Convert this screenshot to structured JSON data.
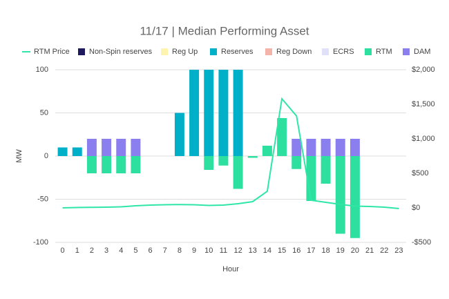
{
  "chart_data": {
    "type": "bar",
    "title": "11/17 | Median Performing Asset",
    "xlabel": "Hour",
    "ylabel": "MW",
    "categories": [
      "0",
      "1",
      "2",
      "3",
      "4",
      "5",
      "6",
      "7",
      "8",
      "9",
      "10",
      "11",
      "12",
      "13",
      "14",
      "15",
      "16",
      "17",
      "18",
      "19",
      "20",
      "21",
      "22",
      "23"
    ],
    "series": [
      {
        "name": "RTM Price",
        "type": "line",
        "axis": "y2",
        "color": "#2ee6a6",
        "values": [
          0,
          5,
          8,
          10,
          15,
          30,
          40,
          45,
          48,
          45,
          35,
          40,
          60,
          90,
          240,
          1580,
          1330,
          110,
          80,
          50,
          25,
          20,
          10,
          -10
        ]
      },
      {
        "name": "Non-Spin reserves",
        "color": "#1f1a5e",
        "values": [
          0,
          0,
          0,
          0,
          0,
          0,
          0,
          0,
          0,
          0,
          0,
          0,
          0,
          0,
          0,
          0,
          0,
          0,
          0,
          0,
          0,
          0,
          0,
          0
        ]
      },
      {
        "name": "Reg Up",
        "color": "#fff3b0",
        "values": [
          0,
          0,
          0,
          0,
          0,
          0,
          0,
          0,
          0,
          0,
          0,
          0,
          0,
          0,
          0,
          0,
          0,
          0,
          0,
          0,
          0,
          0,
          0,
          0
        ]
      },
      {
        "name": "Reserves",
        "color": "#00b0c8",
        "values": [
          10,
          10,
          0,
          0,
          0,
          0,
          0,
          0,
          50,
          100,
          100,
          100,
          100,
          0,
          0,
          0,
          0,
          0,
          0,
          0,
          0,
          0,
          0,
          0
        ]
      },
      {
        "name": "Reg Down",
        "color": "#f4b4aa",
        "values": [
          0,
          0,
          0,
          0,
          0,
          0,
          0,
          0,
          0,
          0,
          0,
          0,
          0,
          0,
          0,
          0,
          0,
          0,
          0,
          0,
          0,
          0,
          0,
          0
        ]
      },
      {
        "name": "ECRS",
        "color": "#e0e0f8",
        "values": [
          0,
          0,
          0,
          0,
          0,
          0,
          0,
          0,
          0,
          0,
          0,
          0,
          0,
          0,
          0,
          0,
          0,
          0,
          0,
          0,
          0,
          0,
          0,
          0
        ]
      },
      {
        "name": "RTM",
        "color": "#2de0a0",
        "values": [
          0,
          0,
          -20,
          -20,
          -20,
          -20,
          0,
          0,
          0,
          0,
          -16,
          -11,
          -38,
          -2,
          12,
          44,
          -15,
          -52,
          -32,
          -90,
          -95,
          0,
          0,
          0
        ]
      },
      {
        "name": "DAM",
        "color": "#8b7ff0",
        "values": [
          0,
          0,
          20,
          20,
          20,
          20,
          0,
          0,
          0,
          0,
          0,
          0,
          0,
          0,
          0,
          0,
          20,
          20,
          20,
          20,
          20,
          0,
          0,
          0
        ]
      }
    ],
    "ylim": [
      -100,
      100
    ],
    "yticks": [
      -100,
      -50,
      0,
      50,
      100
    ],
    "y2lim": [
      -500,
      2000
    ],
    "y2ticks": [
      {
        "value": -500,
        "label": "-$500"
      },
      {
        "value": 0,
        "label": "$0"
      },
      {
        "value": 500,
        "label": "$500"
      },
      {
        "value": 1000,
        "label": "$1,000"
      },
      {
        "value": 1500,
        "label": "$1,500"
      },
      {
        "value": 2000,
        "label": "$2,000"
      }
    ],
    "grid": true,
    "legend": "top"
  }
}
